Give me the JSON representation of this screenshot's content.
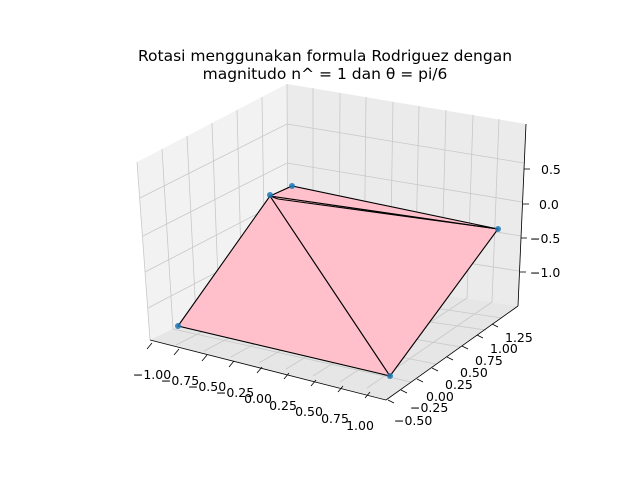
{
  "chart_data": {
    "type": "3d-polygon",
    "title_lines": [
      "Rotasi menggunakan formula Rodriguez dengan",
      "magnitudo n^ = 1 dan θ = pi/6"
    ],
    "xlabel": "",
    "ylabel": "",
    "zlabel": "",
    "grid": true,
    "x_ticks": [
      "−1.00",
      "−0.75",
      "−0.50",
      "−0.25",
      "0.00",
      "0.25",
      "0.50",
      "0.75",
      "1.00"
    ],
    "y_ticks": [
      "−0.50",
      "−0.25",
      "0.00",
      "0.25",
      "0.50",
      "0.75",
      "1.00",
      "1.25"
    ],
    "z_ticks": [
      "0.5",
      "0.0",
      "−0.5",
      "−1.0"
    ],
    "face_color": "#ffc0cb",
    "edge_color": "#000000",
    "point_color": "#1f77b4",
    "points": [
      {
        "x": -1.0,
        "y": -0.15,
        "z": -0.85
      },
      {
        "x": 0.0,
        "y": 1.4,
        "z": 0.0
      },
      {
        "x": 0.2,
        "y": 1.45,
        "z": 0.2
      },
      {
        "x": 1.0,
        "y": 0.25,
        "z": 0.55
      },
      {
        "x": 0.8,
        "y": -0.5,
        "z": -0.85
      }
    ]
  }
}
